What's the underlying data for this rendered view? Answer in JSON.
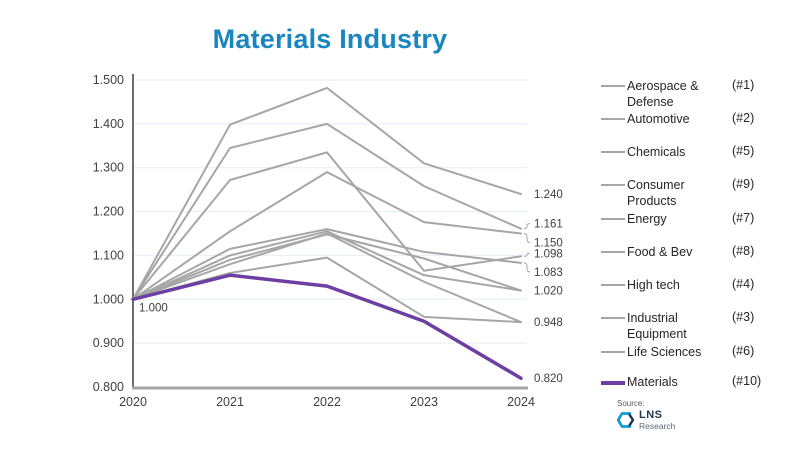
{
  "title": "Materials Industry",
  "colors": {
    "title": "#1986C0",
    "gray_series": "#A6A6A6",
    "materials_series": "#6E3FA3",
    "axis_text": "#404040",
    "gridline": "#E6EDF4",
    "x_axis_line": "#A6A6A6",
    "y_axis_line": "#6E6E6E",
    "data_label": "#404040"
  },
  "chart_data": {
    "type": "line",
    "x": [
      "2020",
      "2021",
      "2022",
      "2023",
      "2024"
    ],
    "ylim": [
      0.8,
      1.5
    ],
    "yticks": [
      {
        "v": 1.5,
        "label": "1.500"
      },
      {
        "v": 1.4,
        "label": "1.400"
      },
      {
        "v": 1.3,
        "label": "1.300"
      },
      {
        "v": 1.2,
        "label": "1.200"
      },
      {
        "v": 1.1,
        "label": "1.100"
      },
      {
        "v": 1.0,
        "label": "1.000"
      },
      {
        "v": 0.9,
        "label": "0.900"
      },
      {
        "v": 0.8,
        "label": "0.800"
      }
    ],
    "grid": true,
    "legend_position": "right",
    "series": [
      {
        "name": "Aerospace & Defense",
        "rank": "(#1)",
        "color": "#A6A6A6",
        "width": 2,
        "values": [
          1.0,
          1.398,
          1.482,
          1.31,
          1.24
        ]
      },
      {
        "name": "Automotive",
        "rank": "(#2)",
        "color": "#A6A6A6",
        "width": 2,
        "values": [
          1.0,
          1.345,
          1.4,
          1.258,
          1.161
        ]
      },
      {
        "name": "Chemicals",
        "rank": "(#5)",
        "color": "#A6A6A6",
        "width": 2,
        "values": [
          1.0,
          1.115,
          1.16,
          1.108,
          1.083
        ]
      },
      {
        "name": "Consumer Products",
        "rank": "(#9)",
        "color": "#A6A6A6",
        "width": 2,
        "values": [
          1.0,
          1.08,
          1.15,
          1.04,
          0.948
        ]
      },
      {
        "name": "Energy",
        "rank": "(#7)",
        "color": "#A6A6A6",
        "width": 2,
        "values": [
          1.0,
          1.09,
          1.148,
          1.093,
          1.02
        ]
      },
      {
        "name": "Food & Bev",
        "rank": "(#8)",
        "color": "#A6A6A6",
        "width": 2,
        "values": [
          1.0,
          1.06,
          1.095,
          0.96,
          0.948
        ]
      },
      {
        "name": "High tech",
        "rank": "(#4)",
        "color": "#A6A6A6",
        "width": 2,
        "values": [
          1.0,
          1.272,
          1.335,
          1.065,
          1.098
        ]
      },
      {
        "name": "Industrial Equipment",
        "rank": "(#3)",
        "color": "#A6A6A6",
        "width": 2,
        "values": [
          1.0,
          1.155,
          1.29,
          1.176,
          1.15
        ]
      },
      {
        "name": "Life Sciences",
        "rank": "(#6)",
        "color": "#A6A6A6",
        "width": 2,
        "values": [
          1.0,
          1.1,
          1.155,
          1.055,
          1.02
        ]
      },
      {
        "name": "Materials",
        "rank": "(#10)",
        "color": "#6E3FA3",
        "width": 3.5,
        "values": [
          1.0,
          1.055,
          1.03,
          0.95,
          0.82
        ]
      }
    ],
    "start_label": "1.000",
    "end_labels": [
      {
        "text": "1.240",
        "value": 1.24,
        "dy": 0,
        "leader": false
      },
      {
        "text": "1.161",
        "value": 1.161,
        "dy": -5,
        "leader": true
      },
      {
        "text": "1.150",
        "value": 1.15,
        "dy": 9,
        "leader": true
      },
      {
        "text": "1.098",
        "value": 1.098,
        "dy": -3,
        "leader": true
      },
      {
        "text": "1.083",
        "value": 1.083,
        "dy": 9,
        "leader": true
      },
      {
        "text": "1.020",
        "value": 1.02,
        "dy": 0,
        "leader": false
      },
      {
        "text": "0.948",
        "value": 0.948,
        "dy": 0,
        "leader": false
      },
      {
        "text": "0.820",
        "value": 0.82,
        "dy": 0,
        "leader": false
      }
    ]
  },
  "source": {
    "label": "Source:",
    "logo_name": "LNS",
    "logo_sub": "Research"
  }
}
